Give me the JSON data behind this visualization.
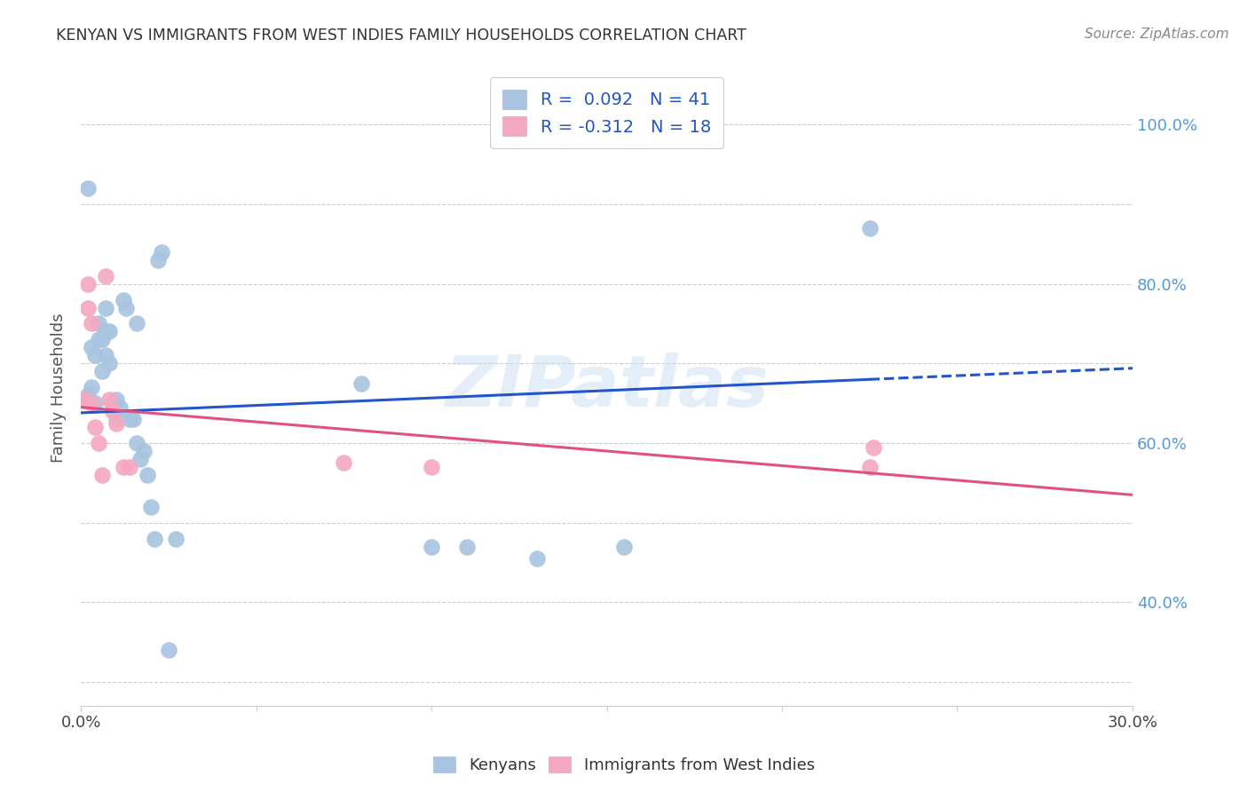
{
  "title": "KENYAN VS IMMIGRANTS FROM WEST INDIES FAMILY HOUSEHOLDS CORRELATION CHART",
  "source": "Source: ZipAtlas.com",
  "ylabel_label": "Family Households",
  "xlim": [
    0.0,
    0.3
  ],
  "ylim": [
    0.27,
    1.07
  ],
  "x_tick_positions": [
    0.0,
    0.05,
    0.1,
    0.15,
    0.2,
    0.25,
    0.3
  ],
  "x_tick_labels": [
    "0.0%",
    "",
    "",
    "",
    "",
    "",
    "30.0%"
  ],
  "y_tick_positions": [
    0.3,
    0.4,
    0.5,
    0.6,
    0.7,
    0.8,
    0.9,
    1.0
  ],
  "y_tick_labels_right": [
    "",
    "40.0%",
    "",
    "60.0%",
    "",
    "80.0%",
    "",
    "100.0%"
  ],
  "kenyan_R": 0.092,
  "kenyan_N": 41,
  "westindies_R": -0.312,
  "westindies_N": 18,
  "kenyan_color": "#a8c4e0",
  "westindies_color": "#f4a8c0",
  "kenyan_line_color": "#2255cc",
  "westindies_line_color": "#e05080",
  "legend_text_color": "#2255cc",
  "watermark": "ZIPatlas",
  "bg_color": "#ffffff",
  "grid_color": "#cccccc",
  "kenyan_x": [
    0.002,
    0.001,
    0.002,
    0.003,
    0.003,
    0.004,
    0.004,
    0.005,
    0.005,
    0.006,
    0.006,
    0.007,
    0.007,
    0.007,
    0.008,
    0.008,
    0.009,
    0.01,
    0.01,
    0.011,
    0.012,
    0.013,
    0.014,
    0.015,
    0.016,
    0.016,
    0.017,
    0.018,
    0.019,
    0.02,
    0.021,
    0.022,
    0.023,
    0.025,
    0.027,
    0.08,
    0.1,
    0.11,
    0.13,
    0.155,
    0.225
  ],
  "kenyan_y": [
    0.92,
    0.655,
    0.66,
    0.67,
    0.72,
    0.65,
    0.71,
    0.75,
    0.73,
    0.69,
    0.73,
    0.71,
    0.74,
    0.77,
    0.7,
    0.74,
    0.65,
    0.63,
    0.655,
    0.645,
    0.78,
    0.77,
    0.63,
    0.63,
    0.6,
    0.75,
    0.58,
    0.59,
    0.56,
    0.52,
    0.48,
    0.83,
    0.84,
    0.34,
    0.48,
    0.675,
    0.47,
    0.47,
    0.455,
    0.47,
    0.87
  ],
  "westindies_x": [
    0.001,
    0.002,
    0.002,
    0.003,
    0.003,
    0.004,
    0.005,
    0.006,
    0.007,
    0.008,
    0.009,
    0.01,
    0.012,
    0.014,
    0.075,
    0.1,
    0.225,
    0.226
  ],
  "westindies_y": [
    0.655,
    0.77,
    0.8,
    0.65,
    0.75,
    0.62,
    0.6,
    0.56,
    0.81,
    0.655,
    0.64,
    0.625,
    0.57,
    0.57,
    0.575,
    0.57,
    0.57,
    0.595
  ],
  "kenyan_line_x0": 0.0,
  "kenyan_line_y0": 0.638,
  "kenyan_line_x1": 0.225,
  "kenyan_line_y1": 0.68,
  "kenyan_line_dash_x0": 0.225,
  "kenyan_line_dash_y0": 0.68,
  "kenyan_line_dash_x1": 0.3,
  "kenyan_line_dash_y1": 0.694,
  "wi_line_x0": 0.0,
  "wi_line_y0": 0.645,
  "wi_line_x1": 0.3,
  "wi_line_y1": 0.535
}
